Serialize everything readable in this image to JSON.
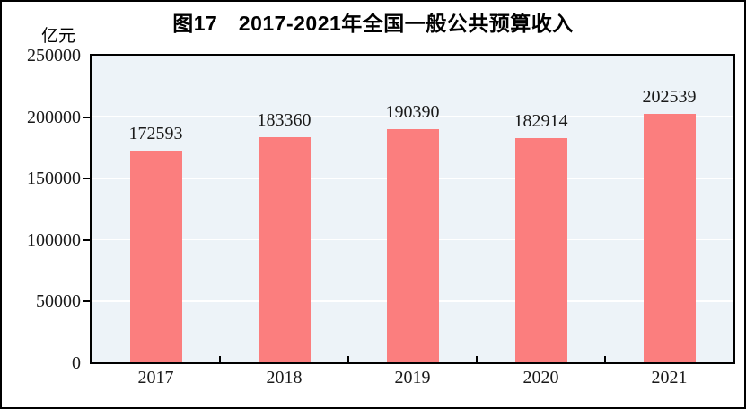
{
  "figure": {
    "title": "图17　2017-2021年全国一般公共预算收入",
    "unit_label": "亿元"
  },
  "chart_data": {
    "type": "bar",
    "title": "图17　2017-2021年全国一般公共预算收入",
    "unit": "亿元",
    "categories": [
      "2017",
      "2018",
      "2019",
      "2020",
      "2021"
    ],
    "values": [
      172593,
      183360,
      190390,
      182914,
      202539
    ],
    "data_labels": [
      172593,
      183360,
      190390,
      182914,
      202539
    ],
    "xlabel": "",
    "ylabel": "亿元",
    "ylim": [
      0,
      250000
    ],
    "yticks": [
      0,
      50000,
      100000,
      150000,
      200000,
      250000
    ],
    "grid": "horizontal-white-lines-at-yticks",
    "legend": "none",
    "colors": {
      "bar_fill": "#fb7e7e",
      "plot_background": "#edf3f8",
      "gridline": "#ffffff",
      "axis": "#000000",
      "text": "#1a1a1a"
    }
  }
}
